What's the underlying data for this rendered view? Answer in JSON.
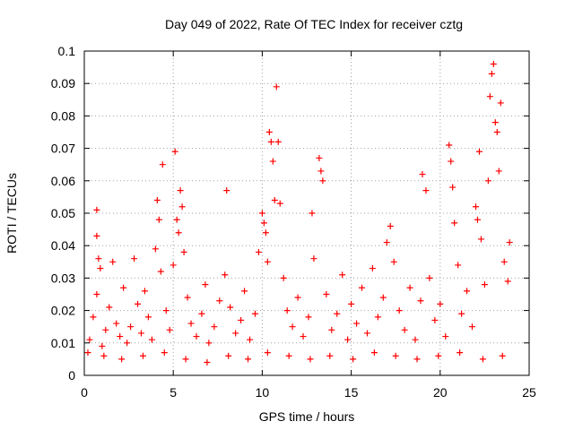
{
  "chart_data": {
    "type": "scatter",
    "title": "Day 049 of 2022, Rate Of TEC Index for receiver cztg",
    "xlabel": "GPS time / hours",
    "ylabel": "ROTI / TECUs",
    "xlim": [
      0,
      25
    ],
    "ylim": [
      0,
      0.1
    ],
    "xticks": [
      0,
      5,
      10,
      15,
      20,
      25
    ],
    "xtick_labels": [
      "0",
      "5",
      "10",
      "15",
      "20",
      "25"
    ],
    "yticks": [
      0,
      0.01,
      0.02,
      0.03,
      0.04,
      0.05,
      0.06,
      0.07,
      0.08,
      0.09,
      0.1
    ],
    "ytick_labels": [
      "0",
      "0.01",
      "0.02",
      "0.03",
      "0.04",
      "0.05",
      "0.06",
      "0.07",
      "0.08",
      "0.09",
      "0.1"
    ],
    "grid": true,
    "marker": "+",
    "colors": {
      "points": "#ff0000",
      "grid": "#a0a0a0",
      "axis": "#000000"
    },
    "series": [
      {
        "values": [
          [
            0.3,
            0.011
          ],
          [
            0.5,
            0.018
          ],
          [
            0.7,
            0.025
          ],
          [
            0.8,
            0.036
          ],
          [
            0.9,
            0.033
          ],
          [
            0.7,
            0.043
          ],
          [
            0.7,
            0.051
          ],
          [
            1.0,
            0.009
          ],
          [
            1.2,
            0.014
          ],
          [
            1.4,
            0.021
          ],
          [
            1.6,
            0.035
          ],
          [
            1.8,
            0.016
          ],
          [
            2.0,
            0.012
          ],
          [
            2.2,
            0.027
          ],
          [
            2.4,
            0.01
          ],
          [
            2.6,
            0.015
          ],
          [
            2.8,
            0.036
          ],
          [
            3.0,
            0.022
          ],
          [
            3.2,
            0.013
          ],
          [
            3.4,
            0.026
          ],
          [
            3.6,
            0.018
          ],
          [
            3.8,
            0.011
          ],
          [
            4.0,
            0.039
          ],
          [
            4.1,
            0.054
          ],
          [
            4.2,
            0.048
          ],
          [
            4.3,
            0.032
          ],
          [
            4.4,
            0.065
          ],
          [
            4.6,
            0.02
          ],
          [
            4.8,
            0.014
          ],
          [
            5.0,
            0.034
          ],
          [
            5.1,
            0.069
          ],
          [
            5.2,
            0.048
          ],
          [
            5.3,
            0.044
          ],
          [
            5.4,
            0.057
          ],
          [
            5.5,
            0.052
          ],
          [
            5.6,
            0.038
          ],
          [
            5.8,
            0.024
          ],
          [
            6.0,
            0.016
          ],
          [
            6.3,
            0.012
          ],
          [
            6.6,
            0.019
          ],
          [
            6.8,
            0.028
          ],
          [
            7.0,
            0.01
          ],
          [
            7.3,
            0.015
          ],
          [
            7.6,
            0.023
          ],
          [
            7.9,
            0.031
          ],
          [
            8.0,
            0.057
          ],
          [
            8.2,
            0.021
          ],
          [
            8.5,
            0.013
          ],
          [
            8.8,
            0.017
          ],
          [
            9.0,
            0.026
          ],
          [
            9.3,
            0.011
          ],
          [
            9.6,
            0.019
          ],
          [
            9.8,
            0.038
          ],
          [
            10.0,
            0.05
          ],
          [
            10.1,
            0.047
          ],
          [
            10.2,
            0.044
          ],
          [
            10.3,
            0.035
          ],
          [
            10.4,
            0.075
          ],
          [
            10.5,
            0.072
          ],
          [
            10.6,
            0.066
          ],
          [
            10.7,
            0.054
          ],
          [
            10.8,
            0.089
          ],
          [
            10.9,
            0.072
          ],
          [
            11.0,
            0.053
          ],
          [
            11.2,
            0.03
          ],
          [
            11.4,
            0.02
          ],
          [
            11.7,
            0.015
          ],
          [
            12.0,
            0.024
          ],
          [
            12.3,
            0.012
          ],
          [
            12.6,
            0.018
          ],
          [
            12.8,
            0.05
          ],
          [
            12.9,
            0.036
          ],
          [
            13.2,
            0.067
          ],
          [
            13.3,
            0.063
          ],
          [
            13.4,
            0.06
          ],
          [
            13.6,
            0.025
          ],
          [
            13.9,
            0.014
          ],
          [
            14.2,
            0.019
          ],
          [
            14.5,
            0.031
          ],
          [
            14.8,
            0.011
          ],
          [
            15.0,
            0.022
          ],
          [
            15.3,
            0.016
          ],
          [
            15.6,
            0.027
          ],
          [
            15.9,
            0.013
          ],
          [
            16.2,
            0.033
          ],
          [
            16.5,
            0.018
          ],
          [
            16.8,
            0.024
          ],
          [
            17.0,
            0.041
          ],
          [
            17.2,
            0.046
          ],
          [
            17.4,
            0.035
          ],
          [
            17.7,
            0.02
          ],
          [
            18.0,
            0.014
          ],
          [
            18.3,
            0.027
          ],
          [
            18.6,
            0.011
          ],
          [
            18.9,
            0.023
          ],
          [
            19.0,
            0.062
          ],
          [
            19.2,
            0.057
          ],
          [
            19.4,
            0.03
          ],
          [
            19.7,
            0.017
          ],
          [
            20.0,
            0.022
          ],
          [
            20.3,
            0.012
          ],
          [
            20.5,
            0.071
          ],
          [
            20.6,
            0.066
          ],
          [
            20.7,
            0.058
          ],
          [
            20.8,
            0.047
          ],
          [
            21.0,
            0.034
          ],
          [
            21.2,
            0.019
          ],
          [
            21.5,
            0.026
          ],
          [
            21.8,
            0.015
          ],
          [
            22.0,
            0.052
          ],
          [
            22.1,
            0.048
          ],
          [
            22.2,
            0.069
          ],
          [
            22.3,
            0.042
          ],
          [
            22.5,
            0.028
          ],
          [
            22.7,
            0.06
          ],
          [
            22.8,
            0.086
          ],
          [
            22.9,
            0.093
          ],
          [
            23.0,
            0.096
          ],
          [
            23.1,
            0.078
          ],
          [
            23.2,
            0.075
          ],
          [
            23.3,
            0.063
          ],
          [
            23.4,
            0.084
          ],
          [
            23.6,
            0.035
          ],
          [
            23.8,
            0.029
          ],
          [
            23.9,
            0.041
          ],
          [
            0.2,
            0.007
          ],
          [
            1.1,
            0.006
          ],
          [
            2.1,
            0.005
          ],
          [
            3.3,
            0.006
          ],
          [
            4.5,
            0.007
          ],
          [
            5.7,
            0.005
          ],
          [
            6.9,
            0.004
          ],
          [
            8.1,
            0.006
          ],
          [
            9.2,
            0.005
          ],
          [
            10.3,
            0.007
          ],
          [
            11.5,
            0.006
          ],
          [
            12.7,
            0.005
          ],
          [
            13.8,
            0.006
          ],
          [
            15.1,
            0.005
          ],
          [
            16.3,
            0.007
          ],
          [
            17.5,
            0.006
          ],
          [
            18.7,
            0.005
          ],
          [
            19.9,
            0.006
          ],
          [
            21.1,
            0.007
          ],
          [
            22.4,
            0.005
          ],
          [
            23.5,
            0.006
          ]
        ]
      }
    ]
  }
}
